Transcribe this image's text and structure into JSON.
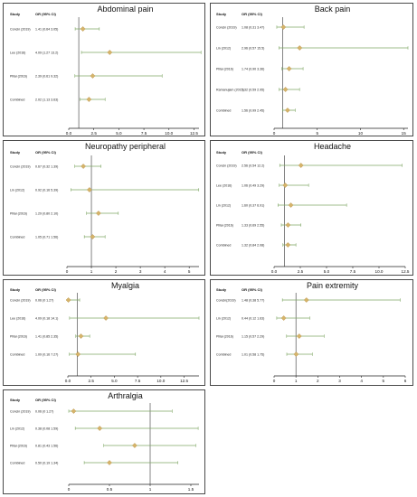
{
  "headers": {
    "study": "Study",
    "or": "OR (95% CI)"
  },
  "colors": {
    "ci_line": "#7fa765",
    "diamond": "#d6b46a",
    "diamond_stroke": "#b08a3e",
    "axis": "#222222",
    "ref_line": "#333333",
    "border": "#4a4a4a"
  },
  "chart_data": [
    {
      "type": "forest",
      "title": "Abdominal pain",
      "xlim": [
        0,
        13
      ],
      "ticks": [
        "0.0",
        "2.5",
        "5.0",
        "7.5",
        "10.0",
        "12.5"
      ],
      "tick_values": [
        0,
        2.5,
        5,
        7.5,
        10,
        12.5
      ],
      "rows": [
        {
          "study": "Concin (2019)",
          "or_text": "1.41 (0.64 3.05)",
          "or": 1.41,
          "lo": 0.64,
          "hi": 3.05
        },
        {
          "study": "Lee (2016)",
          "or_text": "4.09 (1.27 13.2)",
          "or": 4.09,
          "lo": 1.27,
          "hi": 13.2
        },
        {
          "study": "Pillai (2016)",
          "or_text": "2.39 (0.61 9.32)",
          "or": 2.39,
          "lo": 0.61,
          "hi": 9.32
        },
        {
          "study": "Combined",
          "or_text": "2.02 (1.13 3.63)",
          "or": 2.02,
          "lo": 1.13,
          "hi": 3.63
        }
      ]
    },
    {
      "type": "forest",
      "title": "Back pain",
      "xlim": [
        0,
        15.5
      ],
      "ticks": [
        "0",
        "5",
        "10",
        "15"
      ],
      "tick_values": [
        0,
        5,
        10,
        15
      ],
      "rows": [
        {
          "study": "Concin (2019)",
          "or_text": "1.08 (0.31 3.47)",
          "or": 1.08,
          "lo": 0.31,
          "hi": 3.47
        },
        {
          "study": "Lin (2012)",
          "or_text": "2.96 (0.57 15.5)",
          "or": 2.96,
          "lo": 0.57,
          "hi": 15.5
        },
        {
          "study": "Pillai (2016)",
          "or_text": "1.74 (0.90 3.36)",
          "or": 1.74,
          "lo": 0.9,
          "hi": 3.36
        },
        {
          "study": "Ramanujam (2015)",
          "or_text": "1.32 (0.59 2.95)",
          "or": 1.32,
          "lo": 0.59,
          "hi": 2.95
        },
        {
          "study": "Combined",
          "or_text": "1.56 (0.99 2.45)",
          "or": 1.56,
          "lo": 0.99,
          "hi": 2.45
        }
      ]
    },
    {
      "type": "forest",
      "title": "Neuropathy peripheral",
      "xlim": [
        0,
        5.4
      ],
      "ticks": [
        "0",
        "1",
        "2",
        "3",
        "4",
        "5"
      ],
      "tick_values": [
        0,
        1,
        2,
        3,
        4,
        5
      ],
      "rows": [
        {
          "study": "Concin (2019)",
          "or_text": "0.67 (0.32 1.39)",
          "or": 0.67,
          "lo": 0.32,
          "hi": 1.39
        },
        {
          "study": "Lin (2012)",
          "or_text": "0.92 (0.16 5.39)",
          "or": 0.92,
          "lo": 0.16,
          "hi": 5.39
        },
        {
          "study": "Pillai (2016)",
          "or_text": "1.29 (0.80 2.10)",
          "or": 1.29,
          "lo": 0.8,
          "hi": 2.1
        },
        {
          "study": "Combined",
          "or_text": "1.05 (0.71 1.56)",
          "or": 1.05,
          "lo": 0.71,
          "hi": 1.56
        }
      ]
    },
    {
      "type": "forest",
      "title": "Headache",
      "xlim": [
        0,
        12.5
      ],
      "ticks": [
        "0.0",
        "2.5",
        "5.0",
        "7.5",
        "10.0",
        "12.5"
      ],
      "tick_values": [
        0,
        2.5,
        5,
        7.5,
        10,
        12.5
      ],
      "rows": [
        {
          "study": "Concin (2019)",
          "or_text": "2.56 (0.54 12.2)",
          "or": 2.56,
          "lo": 0.54,
          "hi": 12.2
        },
        {
          "study": "Lee (2016)",
          "or_text": "1.06 (0.49 3.29)",
          "or": 1.06,
          "lo": 0.49,
          "hi": 3.29
        },
        {
          "study": "Lin (2012)",
          "or_text": "1.60 (0.37 6.91)",
          "or": 1.6,
          "lo": 0.37,
          "hi": 6.91
        },
        {
          "study": "Pillai (2016)",
          "or_text": "1.33 (0.69 2.55)",
          "or": 1.33,
          "lo": 0.69,
          "hi": 2.55
        },
        {
          "study": "Combined",
          "or_text": "1.32 (0.84 2.08)",
          "or": 1.32,
          "lo": 0.84,
          "hi": 2.08
        }
      ]
    },
    {
      "type": "forest",
      "title": "Myalgia",
      "xlim": [
        0,
        14.1
      ],
      "ticks": [
        "0.0",
        "2.5",
        "5.0",
        "7.5",
        "10.0",
        "12.5"
      ],
      "tick_values": [
        0,
        2.5,
        5,
        7.5,
        10,
        12.5
      ],
      "rows": [
        {
          "study": "Concin (2019)",
          "or_text": "0.06 (0 1.27)",
          "or": 0.06,
          "lo": 0,
          "hi": 1.27
        },
        {
          "study": "Lee (2016)",
          "or_text": "4.09 (0.18 14.1)",
          "or": 4.09,
          "lo": 0.18,
          "hi": 14.1
        },
        {
          "study": "Pillai (2016)",
          "or_text": "1.41 (0.85 2.35)",
          "or": 1.41,
          "lo": 0.85,
          "hi": 2.35
        },
        {
          "study": "Combined",
          "or_text": "1.09 (0.16 7.27)",
          "or": 1.09,
          "lo": 0.16,
          "hi": 7.27
        }
      ]
    },
    {
      "type": "forest",
      "title": "Pain extremity",
      "xlim": [
        0,
        6
      ],
      "ticks": [
        "0",
        "1",
        "2",
        "3",
        "4",
        "5",
        "6"
      ],
      "tick_values": [
        0,
        1,
        2,
        3,
        4,
        5,
        6
      ],
      "rows": [
        {
          "study": "Concin(2019)",
          "or_text": "1.48 (0.38 5.77)",
          "or": 1.48,
          "lo": 0.38,
          "hi": 5.77
        },
        {
          "study": "Lin (2012)",
          "or_text": "0.44 (0.12 1.63)",
          "or": 0.44,
          "lo": 0.12,
          "hi": 1.63
        },
        {
          "study": "Pillai (2016)",
          "or_text": "1.15 (0.57 2.29)",
          "or": 1.15,
          "lo": 0.57,
          "hi": 2.29
        },
        {
          "study": "Combined",
          "or_text": "1.01 (0.58 1.75)",
          "or": 1.01,
          "lo": 0.58,
          "hi": 1.75
        }
      ]
    },
    {
      "type": "forest",
      "title": "Arthralgia",
      "xlim": [
        0,
        1.6
      ],
      "ticks": [
        "0",
        "0.5",
        "1",
        "1.5"
      ],
      "tick_values": [
        0,
        0.5,
        1,
        1.5
      ],
      "rows": [
        {
          "study": "Concin (2019)",
          "or_text": "0.06 (0 1.27)",
          "or": 0.06,
          "lo": 0,
          "hi": 1.27
        },
        {
          "study": "Lin (2012)",
          "or_text": "0.38 (0.08 1.59)",
          "or": 0.38,
          "lo": 0.08,
          "hi": 1.59
        },
        {
          "study": "Pillai (2016)",
          "or_text": "0.81 (0.43 1.56)",
          "or": 0.81,
          "lo": 0.43,
          "hi": 1.56
        },
        {
          "study": "Combined",
          "or_text": "0.50 (0.19 1.34)",
          "or": 0.5,
          "lo": 0.19,
          "hi": 1.34
        }
      ]
    }
  ]
}
